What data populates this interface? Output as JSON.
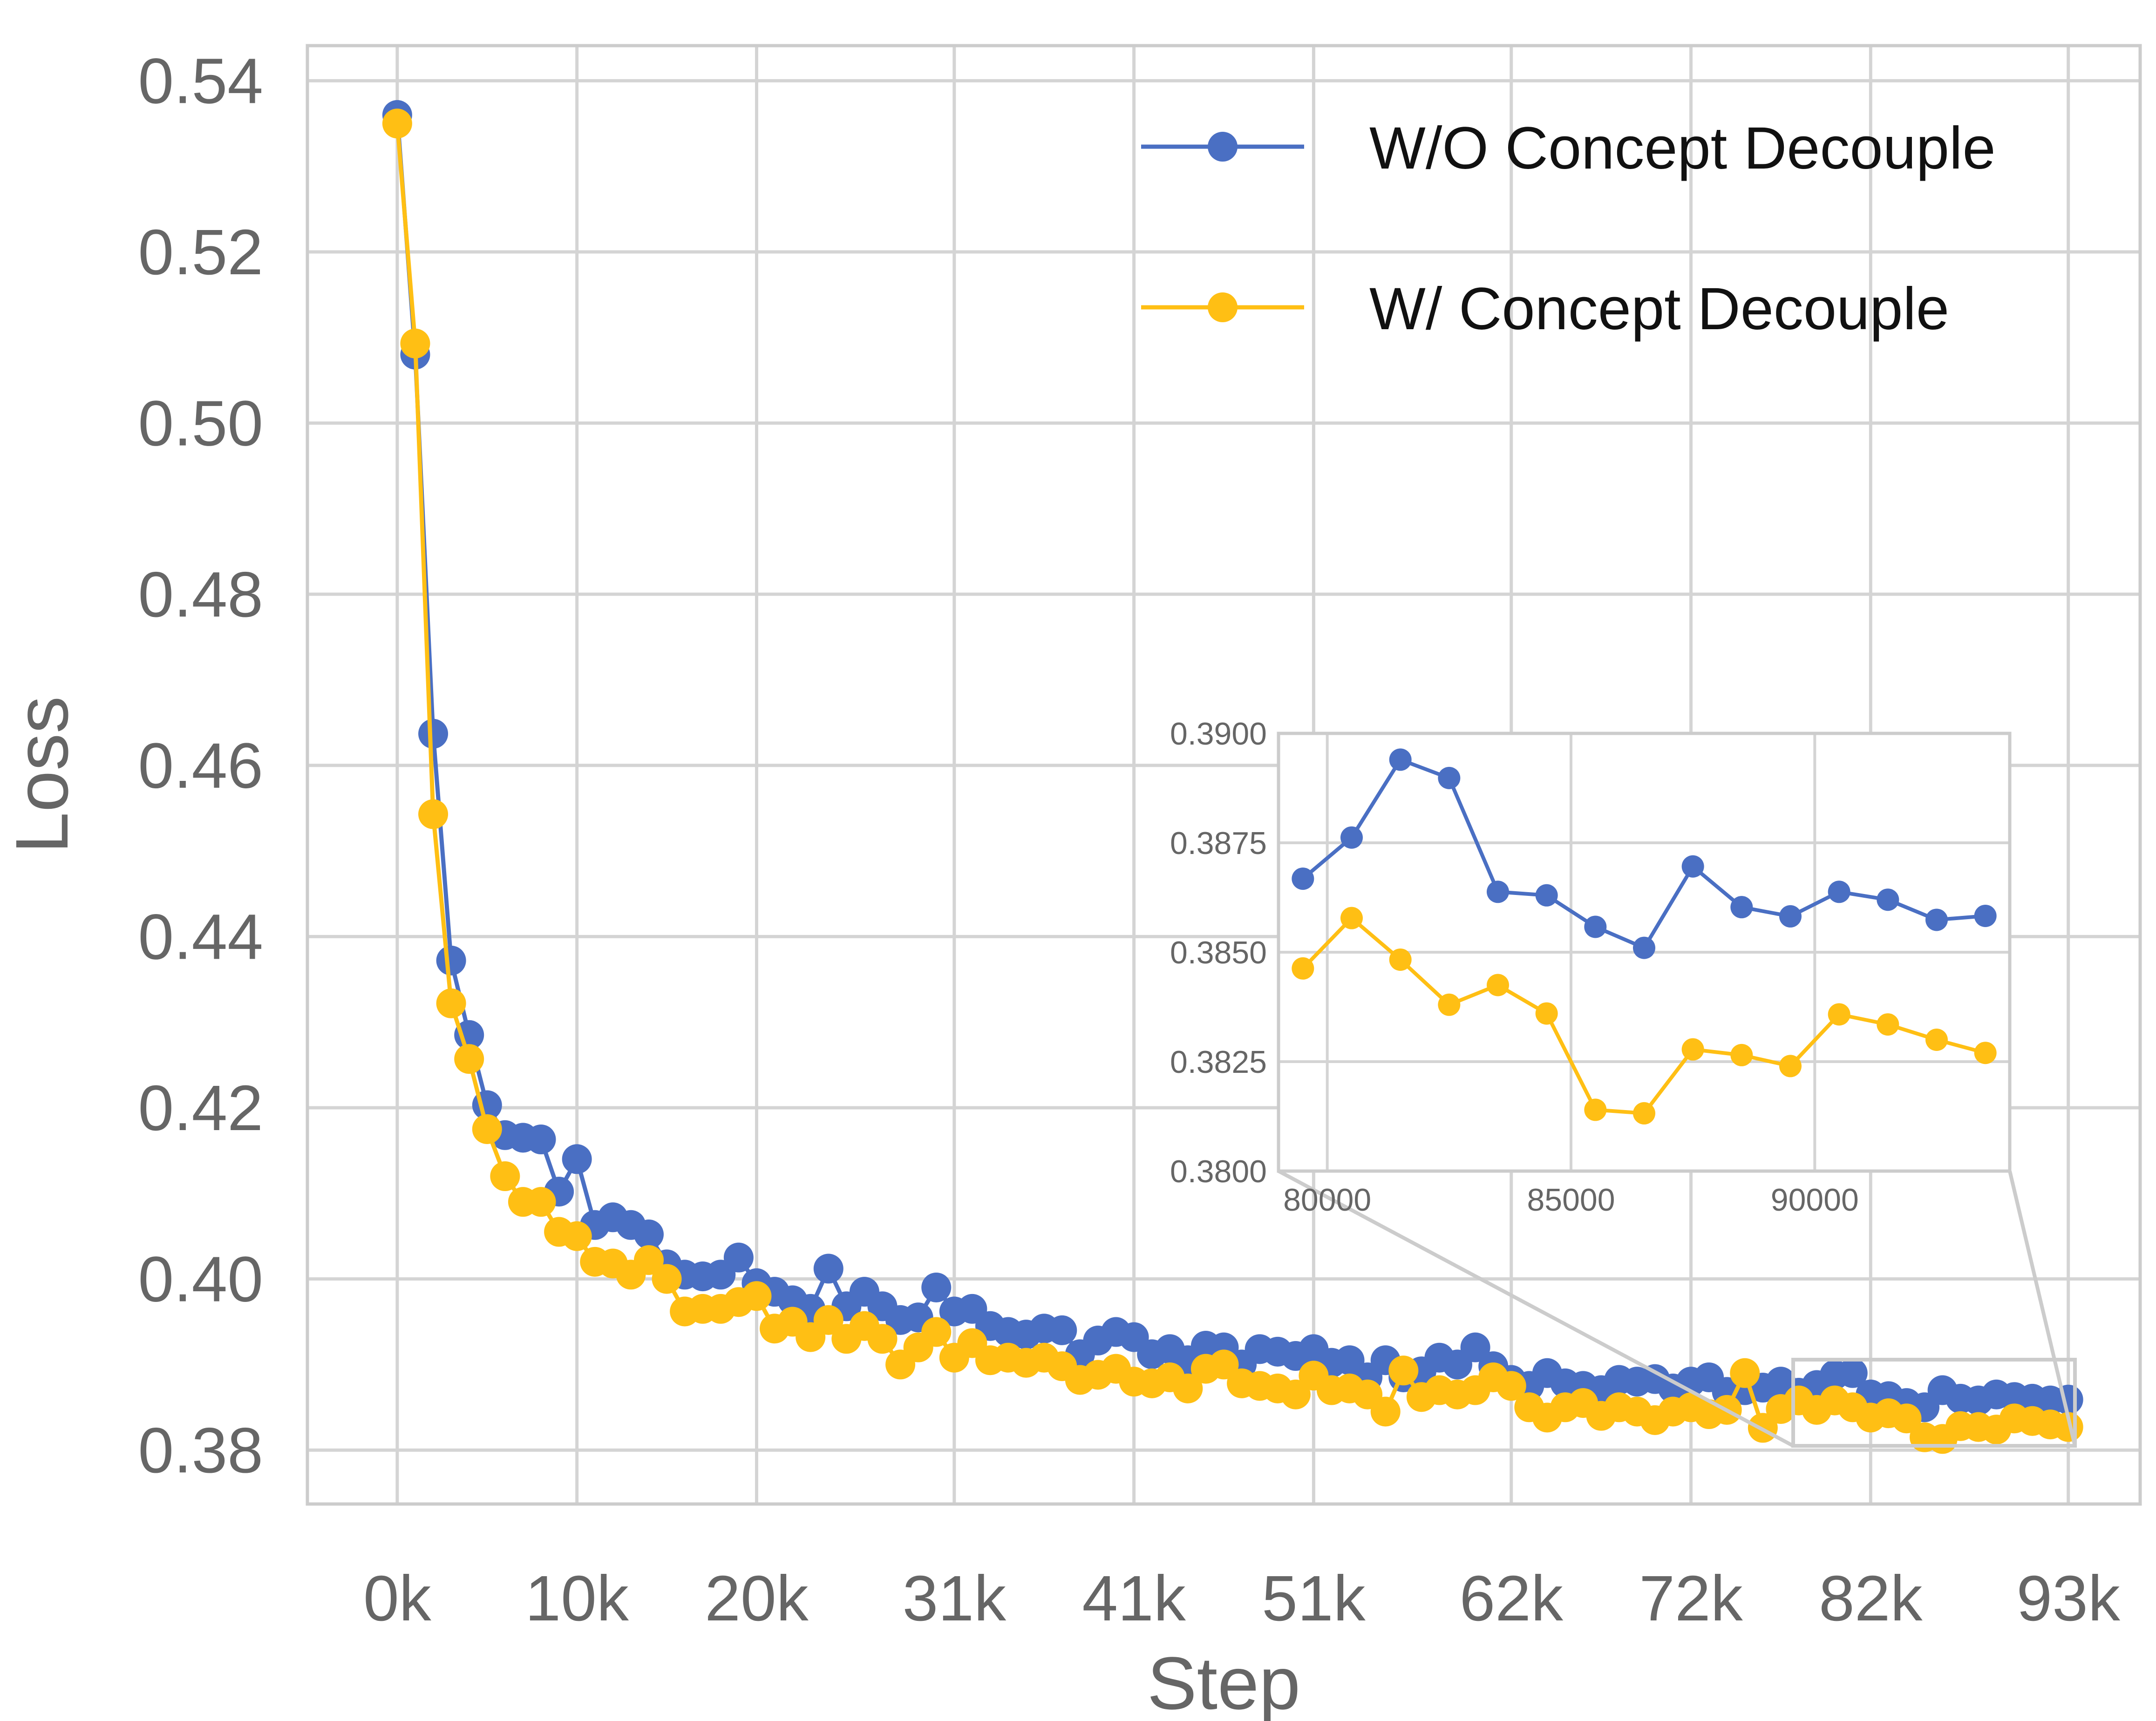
{
  "chart_data": {
    "type": "line",
    "title": "",
    "xlabel": "Step",
    "ylabel": "Loss",
    "xlim": [
      -5000,
      97000
    ],
    "ylim": [
      0.3737,
      0.5441
    ],
    "x_ticks": [
      0,
      10000,
      20000,
      31000,
      41000,
      51000,
      62000,
      72000,
      82000,
      93000
    ],
    "x_tick_labels": [
      "0k",
      "10k",
      "20k",
      "31k",
      "41k",
      "51k",
      "62k",
      "72k",
      "82k",
      "93k"
    ],
    "y_ticks": [
      0.38,
      0.4,
      0.42,
      0.44,
      0.46,
      0.48,
      0.5,
      0.52,
      0.54
    ],
    "y_tick_labels": [
      "0.38",
      "0.40",
      "0.42",
      "0.44",
      "0.46",
      "0.48",
      "0.50",
      "0.52",
      "0.54"
    ],
    "grid": true,
    "legend_position": "top-right",
    "x": [
      0,
      1000,
      2000,
      3000,
      4000,
      5000,
      6000,
      7000,
      8000,
      9000,
      10000,
      11000,
      12000,
      13000,
      14000,
      15000,
      16000,
      17000,
      18000,
      19000,
      20000,
      21000,
      22000,
      23000,
      24000,
      25000,
      26000,
      27000,
      28000,
      29000,
      30000,
      31000,
      32000,
      33000,
      34000,
      35000,
      36000,
      37000,
      38000,
      39000,
      40000,
      41000,
      42000,
      43000,
      44000,
      45000,
      46000,
      47000,
      48000,
      49000,
      50000,
      51000,
      52000,
      53000,
      54000,
      55000,
      56000,
      57000,
      58000,
      59000,
      60000,
      61000,
      62000,
      63000,
      64000,
      65000,
      66000,
      67000,
      68000,
      69000,
      70000,
      71000,
      72000,
      73000,
      74000,
      75000,
      76000,
      77000,
      78000,
      79000,
      80000,
      81000,
      82000,
      83000,
      84000,
      85000,
      86000,
      87000,
      88000,
      89000,
      90000,
      91000,
      92000,
      93000
    ],
    "series": [
      {
        "name": "W/O Concept Decouple",
        "color": "#4A6FC3",
        "values": [
          0.536,
          0.508,
          0.4637,
          0.4372,
          0.4285,
          0.4203,
          0.4168,
          0.4165,
          0.4163,
          0.4102,
          0.414,
          0.4063,
          0.4072,
          0.4063,
          0.4052,
          0.4017,
          0.4005,
          0.4003,
          0.4005,
          0.4025,
          0.3995,
          0.3985,
          0.3975,
          0.3965,
          0.4012,
          0.3968,
          0.3985,
          0.3968,
          0.3952,
          0.3955,
          0.399,
          0.3962,
          0.3965,
          0.3945,
          0.3938,
          0.3935,
          0.3942,
          0.394,
          0.3912,
          0.3928,
          0.3938,
          0.3932,
          0.3912,
          0.3918,
          0.3905,
          0.3922,
          0.392,
          0.39,
          0.3918,
          0.3915,
          0.391,
          0.3918,
          0.3902,
          0.3905,
          0.3885,
          0.3905,
          0.3885,
          0.3892,
          0.3908,
          0.39,
          0.392,
          0.3898,
          0.3882,
          0.3875,
          0.389,
          0.3878,
          0.3875,
          0.387,
          0.3882,
          0.388,
          0.3883,
          0.3872,
          0.388,
          0.3885,
          0.3868,
          0.387,
          0.3873,
          0.388,
          0.3867,
          0.3876,
          0.3888,
          0.389,
          0.3865,
          0.3863,
          0.3855,
          0.385,
          0.387,
          0.386,
          0.3858,
          0.3865,
          0.3862,
          0.386,
          0.3858,
          0.3859
        ]
      },
      {
        "name": "W/ Concept Decouple",
        "color": "#FFBF14",
        "values": [
          0.535,
          0.5093,
          0.4543,
          0.4322,
          0.4257,
          0.4175,
          0.412,
          0.409,
          0.409,
          0.4055,
          0.405,
          0.402,
          0.4018,
          0.4005,
          0.4022,
          0.4,
          0.3962,
          0.3965,
          0.3965,
          0.3973,
          0.398,
          0.3942,
          0.395,
          0.3932,
          0.3952,
          0.393,
          0.3945,
          0.393,
          0.39,
          0.392,
          0.3938,
          0.3908,
          0.3925,
          0.3905,
          0.3908,
          0.3902,
          0.3908,
          0.3898,
          0.3882,
          0.3888,
          0.3895,
          0.388,
          0.3878,
          0.3885,
          0.3872,
          0.3895,
          0.39,
          0.3878,
          0.3875,
          0.3872,
          0.3865,
          0.3887,
          0.387,
          0.3872,
          0.3865,
          0.3845,
          0.3893,
          0.3862,
          0.387,
          0.3865,
          0.387,
          0.3885,
          0.3875,
          0.385,
          0.3838,
          0.385,
          0.3855,
          0.384,
          0.385,
          0.3845,
          0.3835,
          0.3845,
          0.385,
          0.3842,
          0.3847,
          0.389,
          0.3826,
          0.3848,
          0.3858,
          0.3847,
          0.3858,
          0.385,
          0.3838,
          0.3843,
          0.3837,
          0.3815,
          0.3813,
          0.3828,
          0.3827,
          0.3824,
          0.3837,
          0.3834,
          0.383,
          0.3827
        ]
      }
    ],
    "inset": {
      "xlim": [
        79000,
        94000
      ],
      "ylim": [
        0.38,
        0.39
      ],
      "x_ticks": [
        80000,
        85000,
        90000
      ],
      "x_tick_labels": [
        "80000",
        "85000",
        "90000"
      ],
      "y_ticks": [
        0.38,
        0.3825,
        0.385,
        0.3875,
        0.39
      ],
      "y_tick_labels": [
        "0.3800",
        "0.3825",
        "0.3850",
        "0.3875",
        "0.3900"
      ],
      "x": [
        79500,
        80500,
        81500,
        82500,
        83500,
        84500,
        85500,
        86500,
        87500,
        88500,
        89500,
        90500,
        91500,
        92500,
        93500
      ],
      "series": [
        {
          "name": "W/O Concept Decouple",
          "values": [
            0.38668,
            0.38762,
            0.3894,
            0.38898,
            0.38638,
            0.3863,
            0.38558,
            0.3851,
            0.38696,
            0.38603,
            0.38582,
            0.38638,
            0.3862,
            0.38574,
            0.38583
          ]
        },
        {
          "name": "W/ Concept Decouple",
          "values": [
            0.38463,
            0.38578,
            0.38483,
            0.3838,
            0.38425,
            0.3836,
            0.3814,
            0.38132,
            0.38278,
            0.38265,
            0.3824,
            0.38358,
            0.38335,
            0.383,
            0.3827
          ]
        }
      ]
    }
  },
  "colors": {
    "grid": "#d4d4d4",
    "frame": "#cccccc",
    "tick_text": "#666666"
  }
}
